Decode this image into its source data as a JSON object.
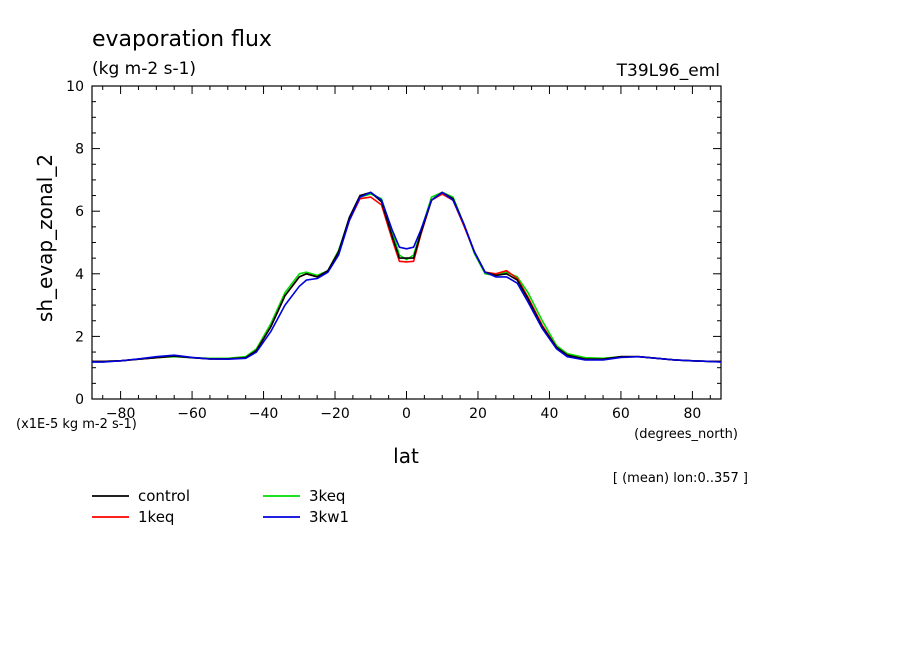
{
  "chart_data": {
    "type": "line",
    "title": "evaporation flux",
    "units": "(kg m-2 s-1)",
    "run_label": "T39L96_eml",
    "xlabel": "lat",
    "x_units": "(degrees_north)",
    "ylabel": "sh_evap_zonal_2",
    "y_scale_note": "(x1E-5 kg m-2 s-1)",
    "footnote": "[ (mean) lon:0..357 ]",
    "xlim": [
      -88,
      88
    ],
    "ylim": [
      0,
      10
    ],
    "x_ticks": [
      -80,
      -60,
      -40,
      -20,
      0,
      20,
      40,
      60,
      80
    ],
    "y_ticks": [
      0,
      2,
      4,
      6,
      8,
      10
    ],
    "grid": false,
    "legend_position": "bottom-left",
    "x": [
      -88,
      -85,
      -80,
      -75,
      -70,
      -65,
      -60,
      -55,
      -50,
      -45,
      -42,
      -38,
      -34,
      -30,
      -28,
      -25,
      -22,
      -19,
      -16,
      -13,
      -10,
      -7,
      -4,
      -2,
      0,
      2,
      4,
      7,
      10,
      13,
      16,
      19,
      22,
      25,
      28,
      31,
      34,
      38,
      42,
      45,
      50,
      55,
      60,
      65,
      70,
      75,
      80,
      85,
      88
    ],
    "series": [
      {
        "name": "control",
        "color": "#000000",
        "values": [
          1.2,
          1.2,
          1.22,
          1.27,
          1.32,
          1.37,
          1.32,
          1.28,
          1.28,
          1.32,
          1.55,
          2.3,
          3.3,
          3.9,
          4.0,
          3.9,
          4.1,
          4.7,
          5.8,
          6.5,
          6.6,
          6.3,
          5.2,
          4.5,
          4.5,
          4.5,
          5.3,
          6.35,
          6.6,
          6.4,
          5.6,
          4.7,
          4.05,
          3.95,
          4.0,
          3.8,
          3.2,
          2.3,
          1.65,
          1.4,
          1.27,
          1.27,
          1.35,
          1.35,
          1.3,
          1.25,
          1.22,
          1.2,
          1.2
        ]
      },
      {
        "name": "1keq",
        "color": "#ff0000",
        "values": [
          1.2,
          1.2,
          1.22,
          1.27,
          1.32,
          1.37,
          1.32,
          1.28,
          1.28,
          1.32,
          1.55,
          2.3,
          3.3,
          3.9,
          4.0,
          3.9,
          4.1,
          4.7,
          5.7,
          6.4,
          6.45,
          6.2,
          5.1,
          4.4,
          4.38,
          4.4,
          5.25,
          6.35,
          6.55,
          6.35,
          5.55,
          4.7,
          4.05,
          4.0,
          4.1,
          3.85,
          3.25,
          2.35,
          1.65,
          1.4,
          1.27,
          1.27,
          1.35,
          1.35,
          1.3,
          1.25,
          1.22,
          1.2,
          1.2
        ]
      },
      {
        "name": "3keq",
        "color": "#00dd00",
        "values": [
          1.2,
          1.2,
          1.22,
          1.27,
          1.32,
          1.35,
          1.32,
          1.3,
          1.3,
          1.35,
          1.6,
          2.4,
          3.4,
          4.0,
          4.05,
          3.95,
          4.1,
          4.75,
          5.75,
          6.45,
          6.55,
          6.4,
          5.35,
          4.6,
          4.45,
          4.6,
          5.35,
          6.45,
          6.6,
          6.45,
          5.6,
          4.65,
          4.0,
          3.95,
          4.05,
          3.9,
          3.4,
          2.5,
          1.7,
          1.45,
          1.32,
          1.3,
          1.35,
          1.35,
          1.3,
          1.25,
          1.22,
          1.2,
          1.2
        ]
      },
      {
        "name": "3kw1",
        "color": "#0000dd",
        "values": [
          1.18,
          1.18,
          1.22,
          1.28,
          1.35,
          1.4,
          1.33,
          1.28,
          1.27,
          1.3,
          1.5,
          2.15,
          3.0,
          3.6,
          3.8,
          3.85,
          4.05,
          4.6,
          5.7,
          6.45,
          6.6,
          6.35,
          5.4,
          4.85,
          4.8,
          4.85,
          5.4,
          6.35,
          6.6,
          6.35,
          5.6,
          4.7,
          4.05,
          3.9,
          3.9,
          3.7,
          3.1,
          2.25,
          1.6,
          1.35,
          1.25,
          1.25,
          1.33,
          1.35,
          1.3,
          1.25,
          1.22,
          1.2,
          1.18
        ]
      }
    ]
  }
}
